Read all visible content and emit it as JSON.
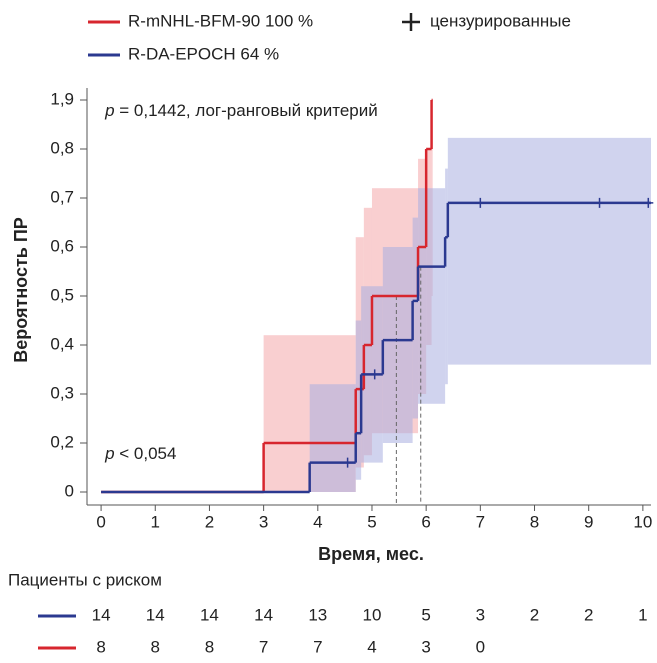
{
  "chart_data": {
    "type": "step",
    "y_label": "Вероятность ПР",
    "x_label": "Время, мес.",
    "annotations": [
      {
        "var": "p",
        "text": " = 0,1442, лог-ранговый критерий",
        "x": 0,
        "y": 1.9
      },
      {
        "var": "p",
        "text": " < 0,054",
        "x": 0,
        "y": 0.2
      }
    ],
    "xlim": [
      -0.26,
      10.15
    ],
    "xticks": [
      0,
      1,
      2,
      3,
      4,
      5,
      6,
      7,
      8,
      9,
      10
    ],
    "ylim": [
      0,
      1.9
    ],
    "yticks": [
      0,
      {
        "value": 0.2,
        "label": "0,2"
      },
      {
        "value": 0.3,
        "label": "0,3"
      },
      {
        "value": 0.4,
        "label": "0,4"
      },
      {
        "value": 0.5,
        "label": "0,5"
      },
      {
        "value": 0.6,
        "label": "0,6"
      },
      {
        "value": 0.7,
        "label": "0,7"
      },
      {
        "value": 0.8,
        "label": "0,8"
      },
      {
        "value": 1.9,
        "label": "1,9"
      }
    ],
    "censor_label": "цензурированные",
    "series": [
      {
        "name": "R-mNHL-BFM-90 100 %",
        "color": "#d7262e",
        "band_color": "#f4a7aa",
        "x": [
          0,
          3,
          4.7,
          4.85,
          5.0,
          5.85,
          6.0,
          6.1
        ],
        "values": [
          0,
          0.2,
          0.31,
          0.4,
          0.5,
          0.6,
          0.8,
          1.9
        ],
        "x_end": 6.12,
        "band_lower": [
          0,
          0,
          0.1,
          0.15,
          0.22,
          0.3,
          0.4,
          0.5
        ],
        "band_upper": [
          0,
          0.42,
          0.62,
          0.68,
          0.72,
          0.78,
          0.8,
          0.8
        ],
        "censored_x": [],
        "censored_y": []
      },
      {
        "name": "R-DA-EPOCH 64 %",
        "color": "#2b3990",
        "band_color": "#a9aee0",
        "x": [
          0,
          3.85,
          4.7,
          4.8,
          5.2,
          5.75,
          5.85,
          6.35,
          6.4
        ],
        "values": [
          0,
          0.12,
          0.22,
          0.34,
          0.41,
          0.49,
          0.56,
          0.62,
          0.69
        ],
        "x_end": 10.15,
        "band_lower": [
          0,
          0,
          0.05,
          0.12,
          0.2,
          0.25,
          0.28,
          0.32,
          0.36
        ],
        "band_upper": [
          0,
          0.32,
          0.45,
          0.52,
          0.6,
          0.66,
          0.72,
          0.76,
          1.05
        ],
        "censored_x": [
          4.55,
          5.05,
          7.0,
          9.2,
          10.1
        ],
        "censored_y": [
          0.12,
          0.34,
          0.69,
          0.69,
          0.69
        ]
      }
    ],
    "median_lines": [
      {
        "x": 5.45,
        "y": 0.5
      },
      {
        "x": 5.9,
        "y": 0.56
      }
    ],
    "risk_table": {
      "title": "Пациенты с риском",
      "rows": [
        {
          "series": 1,
          "counts": [
            "14",
            "14",
            "14",
            "14",
            "13",
            "10",
            "5",
            "3",
            "2",
            "2",
            "1"
          ]
        },
        {
          "series": 0,
          "counts": [
            "8",
            "8",
            "8",
            "7",
            "7",
            "4",
            "3",
            "0"
          ]
        }
      ]
    }
  }
}
